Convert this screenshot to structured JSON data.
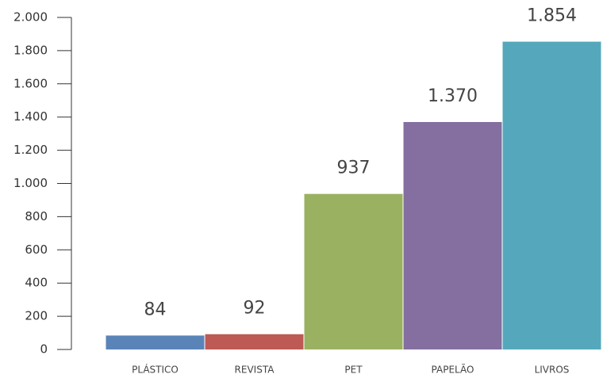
{
  "chart_data": {
    "type": "bar",
    "categories": [
      "PLÁSTICO",
      "REVISTA",
      "PET",
      "PAPELÃO",
      "LIVROS"
    ],
    "values": [
      84,
      92,
      937,
      1370,
      1854
    ],
    "value_labels": [
      "84",
      "92",
      "937",
      "1.370",
      "1.854"
    ],
    "colors": [
      "#5a84b8",
      "#bd5a55",
      "#9bb162",
      "#846fa0",
      "#55a8bb"
    ],
    "ylim": [
      0,
      2000
    ],
    "yticks": [
      0,
      200,
      400,
      600,
      800,
      {
        "value": 1000,
        "label": "1.000"
      },
      {
        "value": 1200,
        "label": "1.200"
      },
      {
        "value": 1400,
        "label": "1.400"
      },
      {
        "value": 1600,
        "label": "1.600"
      },
      {
        "value": 1800,
        "label": "1.800"
      },
      {
        "value": 2000,
        "label": "2.000"
      }
    ],
    "grid": false
  }
}
